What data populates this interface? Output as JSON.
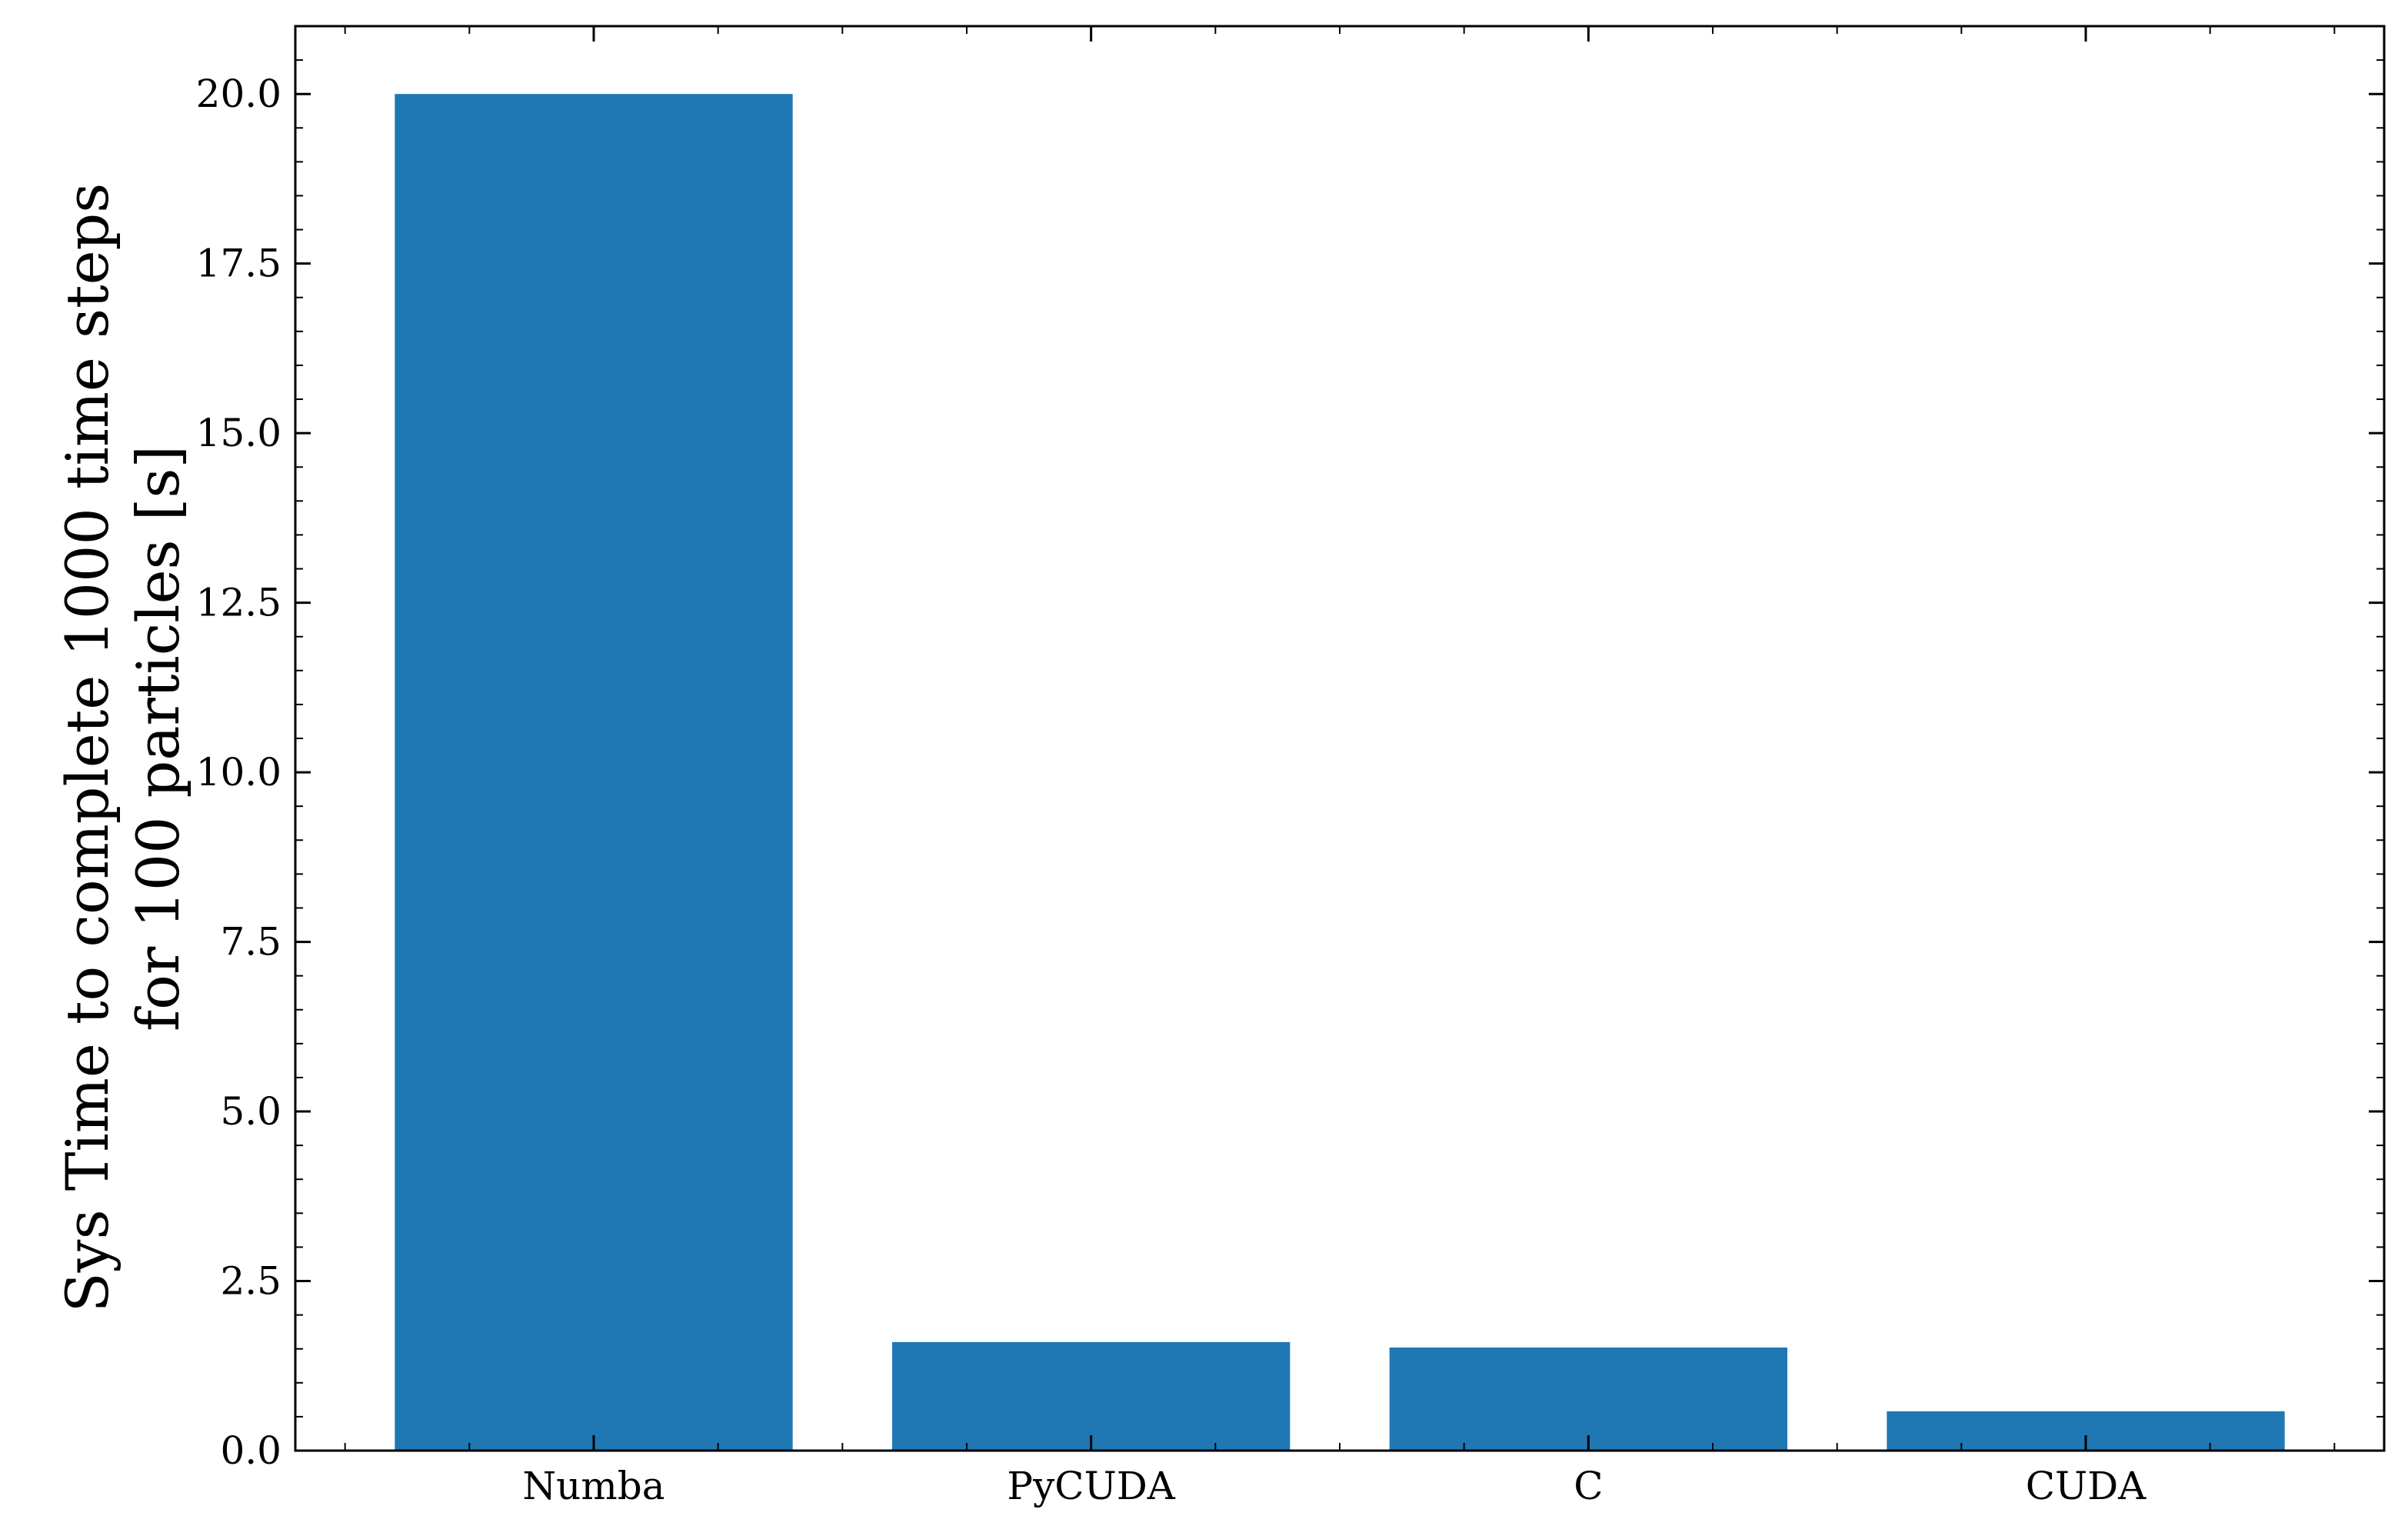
{
  "chart_data": {
    "type": "bar",
    "title": "",
    "xlabel": "",
    "ylabel_lines": [
      "Sys Time to complete 1000 time steps",
      "for 100 particles [s]"
    ],
    "categories": [
      "Numba",
      "PyCUDA",
      "C",
      "CUDA"
    ],
    "values": [
      20.0,
      1.6,
      1.52,
      0.58
    ],
    "ylim": [
      0,
      21
    ],
    "yticks": [
      0.0,
      2.5,
      5.0,
      7.5,
      10.0,
      12.5,
      15.0,
      17.5,
      20.0
    ],
    "ytick_labels": [
      "0.0",
      "2.5",
      "5.0",
      "7.5",
      "10.0",
      "12.5",
      "15.0",
      "17.5",
      "20.0"
    ],
    "grid": false,
    "legend": "none",
    "bar_color": "#1f77b4"
  }
}
